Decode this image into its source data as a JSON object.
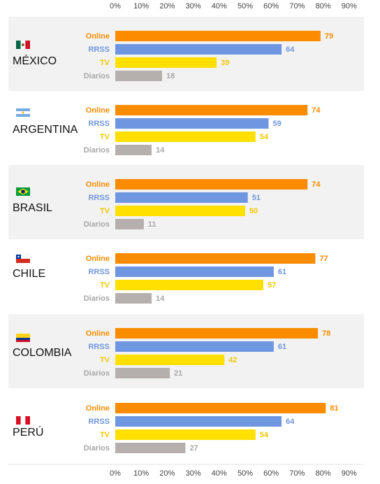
{
  "chart_data": {
    "type": "bar",
    "orientation": "horizontal",
    "x_ticks": [
      "0%",
      "10%",
      "20%",
      "30%",
      "40%",
      "50%",
      "60%",
      "70%",
      "80%",
      "90%"
    ],
    "xlim": [
      0,
      90
    ],
    "categories": [
      "Online",
      "RRSS",
      "TV",
      "Diarios"
    ],
    "series_colors": {
      "Online": "#fb8c00",
      "RRSS": "#6f96e0",
      "TV": "#ffe000",
      "Diarios": "#b5b0ae"
    },
    "label_colors": {
      "Online": "#fb8c00",
      "RRSS": "#6f96e0",
      "TV": "#f0c800",
      "Diarios": "#a7a7a7"
    },
    "groups": [
      {
        "country": "MÉXICO",
        "flag": "mexico-flag",
        "values": [
          79,
          64,
          39,
          18
        ]
      },
      {
        "country": "ARGENTINA",
        "flag": "argentina-flag",
        "values": [
          74,
          59,
          54,
          14
        ]
      },
      {
        "country": "BRASIL",
        "flag": "brazil-flag",
        "values": [
          74,
          51,
          50,
          11
        ]
      },
      {
        "country": "CHILE",
        "flag": "chile-flag",
        "values": [
          77,
          61,
          57,
          14
        ]
      },
      {
        "country": "COLOMBIA",
        "flag": "colombia-flag",
        "values": [
          78,
          61,
          42,
          21
        ]
      },
      {
        "country": "PERÚ",
        "flag": "peru-flag",
        "values": [
          81,
          64,
          54,
          27
        ]
      }
    ]
  }
}
